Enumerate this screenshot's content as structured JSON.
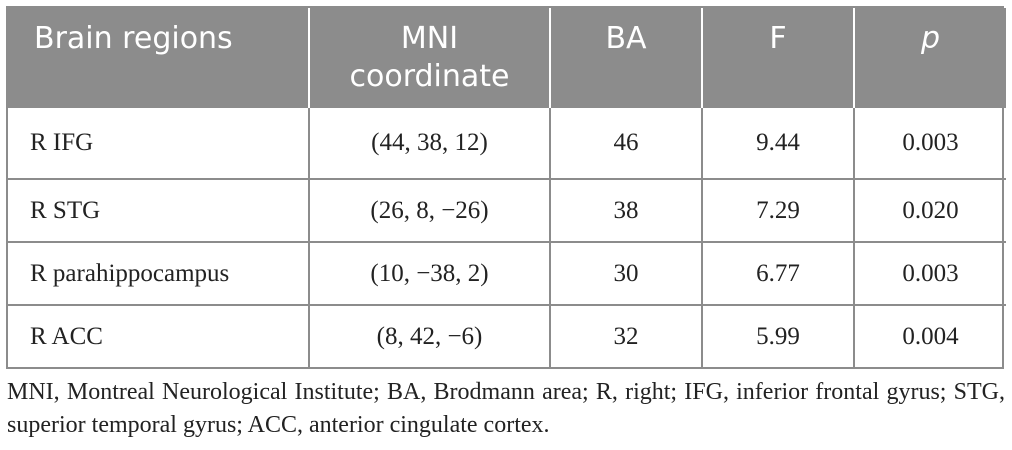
{
  "table": {
    "headers": [
      {
        "line1": "Brain regions",
        "line2": ""
      },
      {
        "line1": "MNI",
        "line2": "coordinate"
      },
      {
        "line1": "BA",
        "line2": ""
      },
      {
        "line1": "F",
        "line2": ""
      },
      {
        "line1": "p",
        "line2": ""
      }
    ],
    "rows": [
      {
        "region": "R IFG",
        "coord": "(44, 38, 12)",
        "ba": "46",
        "f": "9.44",
        "p": "0.003"
      },
      {
        "region": "R STG",
        "coord": "(26, 8, −26)",
        "ba": "38",
        "f": "7.29",
        "p": "0.020"
      },
      {
        "region": "R parahippocampus",
        "coord": "(10, −38, 2)",
        "ba": "30",
        "f": "6.77",
        "p": "0.003"
      },
      {
        "region": "R ACC",
        "coord": "(8, 42, −6)",
        "ba": "32",
        "f": "5.99",
        "p": "0.004"
      }
    ]
  },
  "footnote": "MNI, Montreal Neurological Institute; BA, Brodmann area; R, right; IFG, inferior frontal gyrus; STG, superior temporal gyrus; ACC, anterior cingulate cortex.",
  "colors": {
    "header_bg": "#8c8c8c",
    "header_text": "#ffffff",
    "border": "#8c8c8c",
    "body_text": "#222222"
  }
}
